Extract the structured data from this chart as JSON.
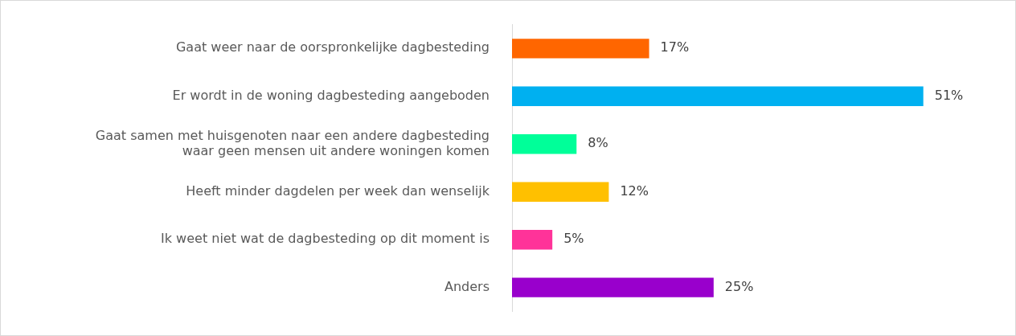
{
  "chart_data": {
    "type": "bar",
    "orientation": "horizontal",
    "categories": [
      "Gaat weer naar de oorspronkelijke dagbesteding",
      "Er wordt in de woning dagbesteding aangeboden",
      "Gaat samen met huisgenoten naar een andere dagbesteding\nwaar geen mensen uit andere woningen komen",
      "Heeft minder dagdelen per week dan wenselijk",
      "Ik weet niet wat de dagbesteding op dit moment is",
      "Anders"
    ],
    "values": [
      17,
      51,
      8,
      12,
      5,
      25
    ],
    "colors": [
      "#ff6600",
      "#00b0f0",
      "#00ff99",
      "#ffc000",
      "#ff3399",
      "#9900cc"
    ],
    "value_labels": [
      "17%",
      "51%",
      "8%",
      "12%",
      "5%",
      "25%"
    ],
    "grid": false,
    "legend": false,
    "tick_labels": "y"
  }
}
